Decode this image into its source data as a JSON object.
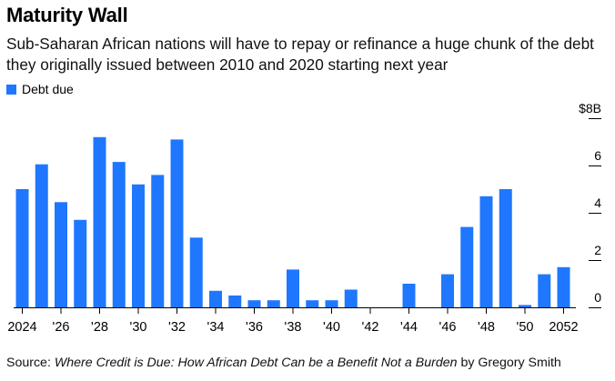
{
  "title": "Maturity Wall",
  "subtitle": "Sub-Saharan African nations will have to repay or refinance a huge chunk of the debt they originally issued between 2010 and 2020 starting next year",
  "legend": {
    "label": "Debt due"
  },
  "source": {
    "prefix": "Source: ",
    "work": "Where Credit is Due: How African Debt Can be a Benefit Not a Burden",
    "suffix": " by Gregory Smith"
  },
  "colors": {
    "bar": "#1f77ff",
    "axis": "#000000",
    "text": "#000000"
  },
  "chart_data": {
    "type": "bar",
    "ylabel": "",
    "ylim": [
      0,
      8
    ],
    "yticks": [
      {
        "value": 0,
        "label": "0"
      },
      {
        "value": 2,
        "label": "2"
      },
      {
        "value": 4,
        "label": "4"
      },
      {
        "value": 6,
        "label": "6"
      },
      {
        "value": 8,
        "label": "$8B"
      }
    ],
    "categories": [
      2024,
      2025,
      2026,
      2027,
      2028,
      2029,
      2030,
      2031,
      2032,
      2033,
      2034,
      2035,
      2036,
      2037,
      2038,
      2039,
      2040,
      2041,
      2042,
      2043,
      2044,
      2045,
      2046,
      2047,
      2048,
      2049,
      2050,
      2051,
      2052
    ],
    "xtick_labels": [
      {
        "category": 2024,
        "label": "2024"
      },
      {
        "category": 2026,
        "label": "'26"
      },
      {
        "category": 2028,
        "label": "'28"
      },
      {
        "category": 2030,
        "label": "'30"
      },
      {
        "category": 2032,
        "label": "'32"
      },
      {
        "category": 2034,
        "label": "'34"
      },
      {
        "category": 2036,
        "label": "'36"
      },
      {
        "category": 2038,
        "label": "'38"
      },
      {
        "category": 2040,
        "label": "'40"
      },
      {
        "category": 2042,
        "label": "'42"
      },
      {
        "category": 2044,
        "label": "'44"
      },
      {
        "category": 2046,
        "label": "'46"
      },
      {
        "category": 2048,
        "label": "'48"
      },
      {
        "category": 2050,
        "label": "'50"
      },
      {
        "category": 2052,
        "label": "2052"
      }
    ],
    "series": [
      {
        "name": "Debt due",
        "values": [
          5.0,
          6.05,
          4.45,
          3.7,
          7.2,
          6.15,
          5.2,
          5.6,
          7.1,
          2.95,
          0.7,
          0.5,
          0.3,
          0.3,
          1.6,
          0.3,
          0.3,
          0.75,
          0.0,
          0.0,
          1.0,
          0.0,
          1.4,
          3.4,
          4.7,
          5.0,
          0.1,
          1.4,
          1.7
        ]
      }
    ]
  }
}
